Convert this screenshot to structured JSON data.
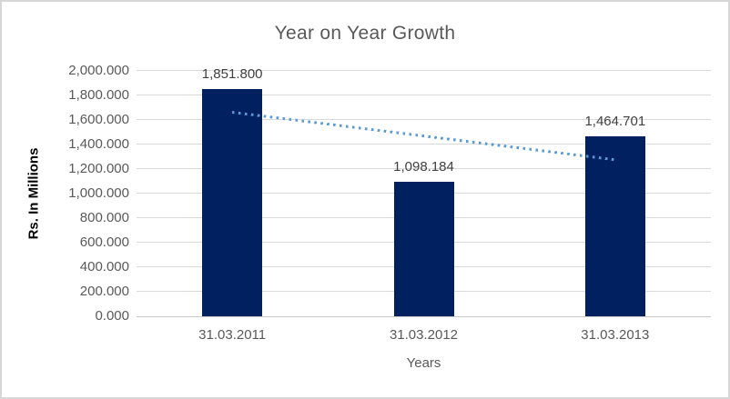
{
  "colors": {
    "bar": "#002060",
    "trendline": "#5b9bd5",
    "title_text": "#595959",
    "tick_text": "#595959",
    "data_label_text": "#404040",
    "axis_title_text": "#000000",
    "gridline": "#d9d9d9",
    "axis_line": "#c9c9c9",
    "frame_border": "#d7d7d7",
    "background": "#ffffff"
  },
  "chart_data": {
    "type": "bar",
    "title": "Year on Year Growth",
    "xlabel": "Years",
    "ylabel": "Rs. In Millions",
    "categories": [
      "31.03.2011",
      "31.03.2012",
      "31.03.2013"
    ],
    "values": [
      1851.8,
      1098.184,
      1464.701
    ],
    "data_labels": [
      "1,851.800",
      "1,098.184",
      "1,464.701"
    ],
    "ylim": [
      0,
      2000
    ],
    "ytick_step": 200,
    "ytick_labels": [
      "0.000",
      "200.000",
      "400.000",
      "600.000",
      "800.000",
      "1,000.000",
      "1,200.000",
      "1,400.000",
      "1,600.000",
      "1,800.000",
      "2,000.000"
    ],
    "grid": true,
    "legend": "none",
    "trendline": {
      "style": "dotted",
      "fit": "linear",
      "start_value": 1665.1,
      "end_value": 1278.0
    }
  }
}
